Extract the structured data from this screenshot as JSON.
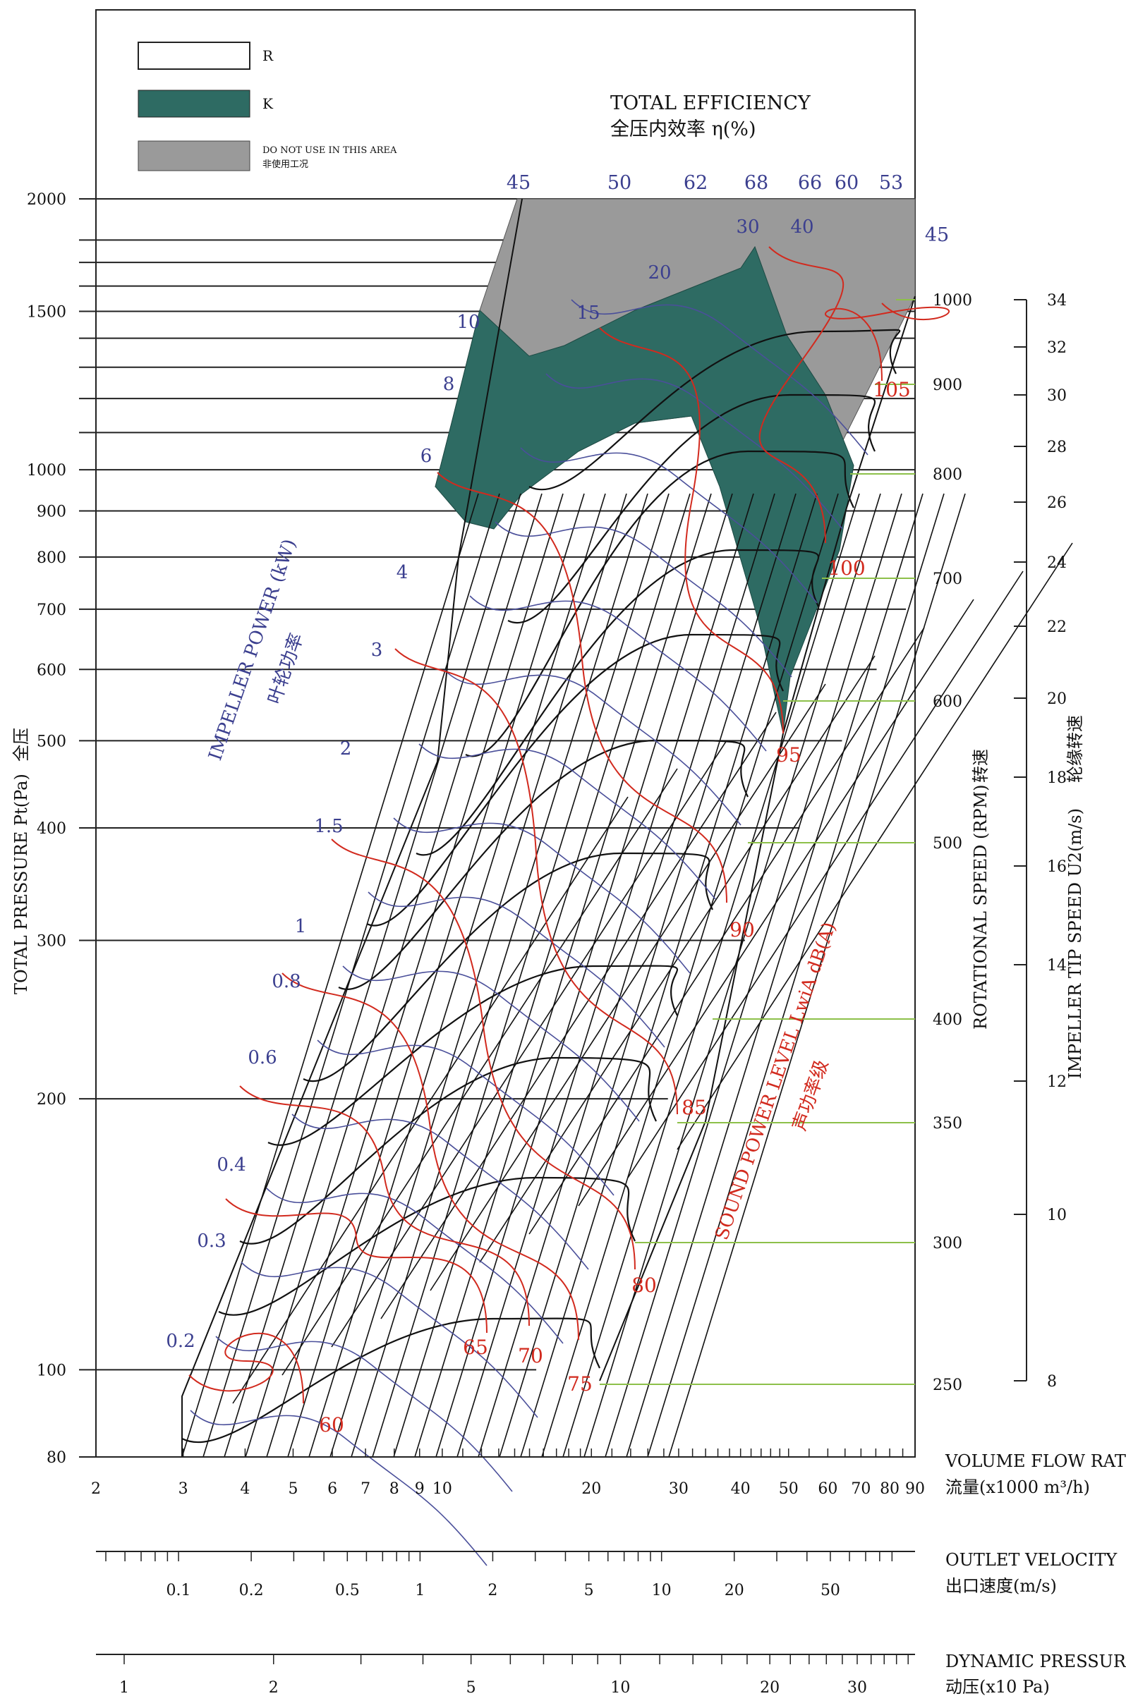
{
  "chart_data": {
    "type": "line",
    "title": "",
    "legend": [
      {
        "key": "R",
        "label": "R",
        "color": "#ffffff"
      },
      {
        "key": "K",
        "label": "K",
        "color": "#2e6b63"
      },
      {
        "key": "NA",
        "label": "DO NOT USE IN THIS AREA",
        "label_cn": "非使用工况",
        "color": "#9a9a9a"
      }
    ],
    "efficiency_title": "TOTAL EFFICIENCY",
    "efficiency_title_cn": "全压内效率  η(%)",
    "efficiency_labels": [
      "45",
      "50",
      "62",
      "68",
      "66",
      "60",
      "53",
      "45"
    ],
    "impeller_power": {
      "label": "IMPELLER POWER (kW)",
      "label_cn": "叶轮功率",
      "values": [
        "0.2",
        "0.3",
        "0.4",
        "0.6",
        "0.8",
        "1",
        "1.5",
        "2",
        "3",
        "4",
        "6",
        "8",
        "10",
        "15",
        "20",
        "30",
        "40"
      ]
    },
    "sound_power": {
      "label": "SOUND POWER LEVEL LwiA dB(A)",
      "label_cn": "声功率级",
      "values": [
        "60",
        "65",
        "70",
        "75",
        "80",
        "85",
        "90",
        "95",
        "100",
        "105"
      ]
    },
    "y_axis": {
      "label": "TOTAL PRESSURE Pt(Pa)",
      "label_cn": "全压",
      "scale": "log",
      "ylim": [
        80,
        2000
      ],
      "ticks": [
        "2000",
        "1500",
        "1000",
        "900",
        "800",
        "700",
        "600",
        "500",
        "400",
        "300",
        "200",
        "100",
        "80"
      ]
    },
    "rotational_speed": {
      "label": "ROTATIONAL SPEED (RPM)",
      "label_cn": "转速",
      "ticks": [
        "1000",
        "900",
        "800",
        "700",
        "600",
        "500",
        "400",
        "350",
        "300",
        "250"
      ]
    },
    "tip_speed": {
      "label": "IMPELLER TIP SPEED U2(m/s)",
      "label_cn": "轮缘转速",
      "ticks": [
        "34",
        "32",
        "30",
        "28",
        "26",
        "24",
        "22",
        "20",
        "18",
        "16",
        "14",
        "12",
        "10",
        "8"
      ]
    },
    "x_axis": {
      "label": "VOLUME FLOW RATE",
      "label_cn": "流量(x1000 m³/h)",
      "scale": "log",
      "xlim": [
        2,
        90
      ],
      "ticks": [
        "2",
        "3",
        "4",
        "5",
        "6",
        "7",
        "8",
        "9",
        "10",
        "20",
        "30",
        "40",
        "50",
        "60",
        "70",
        "80",
        "90"
      ]
    },
    "outlet_velocity": {
      "label": "OUTLET VELOCITY",
      "label_cn": "出口速度(m/s)",
      "ticks": [
        "0.1",
        "0.2",
        "0.5",
        "1",
        "2",
        "5",
        "10",
        "20",
        "50"
      ]
    },
    "dynamic_pressure": {
      "label": "DYNAMIC PRESSURE",
      "label_cn": "动压(x10 Pa)",
      "ticks": [
        "1",
        "2",
        "5",
        "10",
        "20",
        "30"
      ]
    }
  }
}
